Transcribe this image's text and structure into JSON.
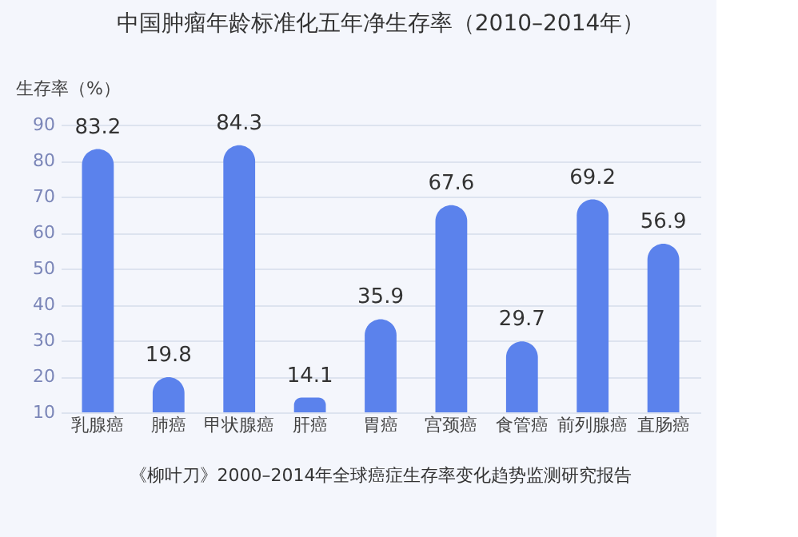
{
  "chart_data": {
    "type": "bar",
    "title": "中国肿瘤年龄标准化五年净生存率（2010–2014年）",
    "ylabel": "生存率（%）",
    "categories": [
      "乳腺癌",
      "肺癌",
      "甲状腺癌",
      "肝癌",
      "胃癌",
      "宫颈癌",
      "食管癌",
      "前列腺癌",
      "直肠癌"
    ],
    "values": [
      83.2,
      19.8,
      84.3,
      14.1,
      35.9,
      67.6,
      29.7,
      69.2,
      56.9
    ],
    "color": "#5b82ec",
    "ylim": [
      10,
      90
    ],
    "yticks": [
      10,
      20,
      30,
      40,
      50,
      60,
      70,
      80,
      90
    ],
    "grid": "y",
    "data_labels": true,
    "annotations": [
      "《柳叶刀》2000–2014年全球癌症生存率变化趋势监测研究报告"
    ]
  }
}
